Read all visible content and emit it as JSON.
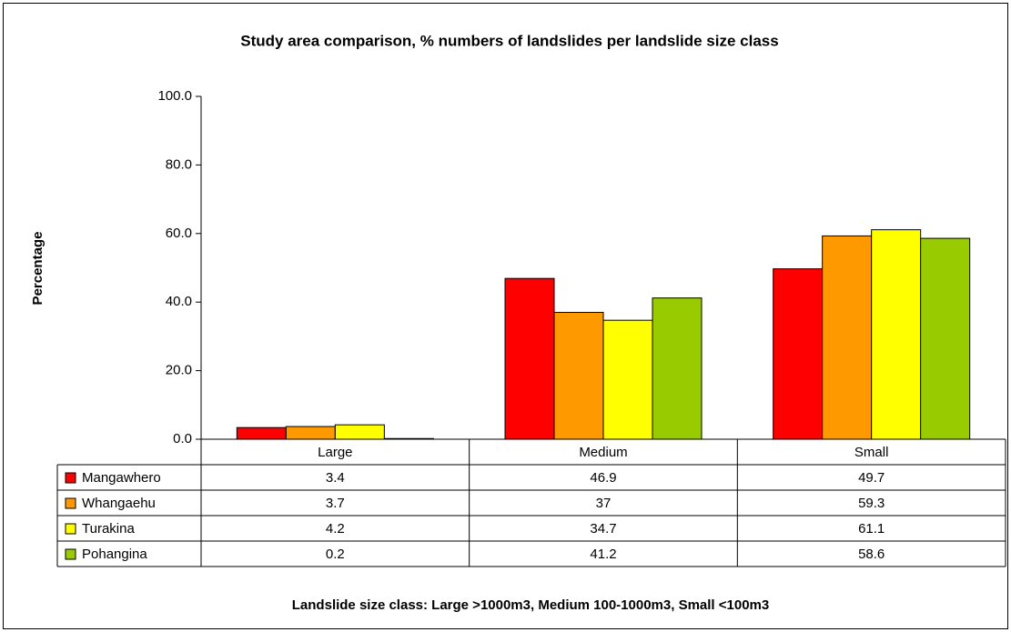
{
  "chart_data": {
    "type": "bar",
    "title": "Study area comparison, % numbers of landslides per landslide size class",
    "y_label": "Percentage",
    "x_label": "Landslide size class: Large >1000m3, Medium 100-1000m3, Small <100m3",
    "categories": [
      "Large",
      "Medium",
      "Small"
    ],
    "series": [
      {
        "name": "Mangawhero",
        "color": "#ff0000",
        "values": [
          3.4,
          46.9,
          49.7
        ]
      },
      {
        "name": "Whangaehu",
        "color": "#ff9900",
        "values": [
          3.7,
          37,
          59.3
        ]
      },
      {
        "name": "Turakina",
        "color": "#ffff00",
        "values": [
          4.2,
          34.7,
          61.1
        ]
      },
      {
        "name": "Pohangina",
        "color": "#99cc00",
        "values": [
          0.2,
          41.2,
          58.6
        ]
      }
    ],
    "ylim": [
      0,
      100
    ],
    "yticks": [
      {
        "value": 0,
        "label": "0.0"
      },
      {
        "value": 20,
        "label": "20.0"
      },
      {
        "value": 40,
        "label": "40.0"
      },
      {
        "value": 60,
        "label": "60.0"
      },
      {
        "value": 80,
        "label": "80.0"
      },
      {
        "value": 100,
        "label": "100.0"
      }
    ],
    "grid": false
  }
}
